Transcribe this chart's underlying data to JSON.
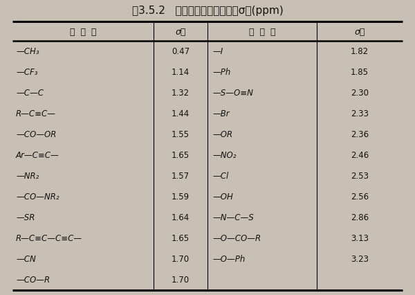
{
  "title": "表3.5.2   舒里公式中各取代基的σ值(ppm)",
  "header_col1": "取  代  基",
  "header_col2": "σ值",
  "header_col3": "取  代  基",
  "header_col4": "σ值",
  "left_groups": [
    "—CH₃",
    "—CF₃",
    "—C—C",
    "R—C≡C—",
    "—CO—OR",
    "Ar—C≡C—",
    "—NR₂",
    "—CO—NR₂",
    "—SR",
    "R—C≡C—C≡C—",
    "—CN",
    "—CO—R"
  ],
  "left_values": [
    "0.47",
    "1.14",
    "1.32",
    "1.44",
    "1.55",
    "1.65",
    "1.57",
    "1.59",
    "1.64",
    "1.65",
    "1.70",
    "1.70"
  ],
  "right_groups": [
    "—I",
    "—Ph",
    "—S—O≡N",
    "—Br",
    "—OR",
    "—NO₂",
    "—Cl",
    "—OH",
    "—N—C—S",
    "—O—CO—R",
    "—O—Ph",
    ""
  ],
  "right_values": [
    "1.82",
    "1.85",
    "2.30",
    "2.33",
    "2.36",
    "2.46",
    "2.53",
    "2.56",
    "2.86",
    "3.13",
    "3.23",
    ""
  ],
  "bg_color": "#c8c0b4",
  "text_color": "#111111",
  "table_bg": "#c8c0b4"
}
